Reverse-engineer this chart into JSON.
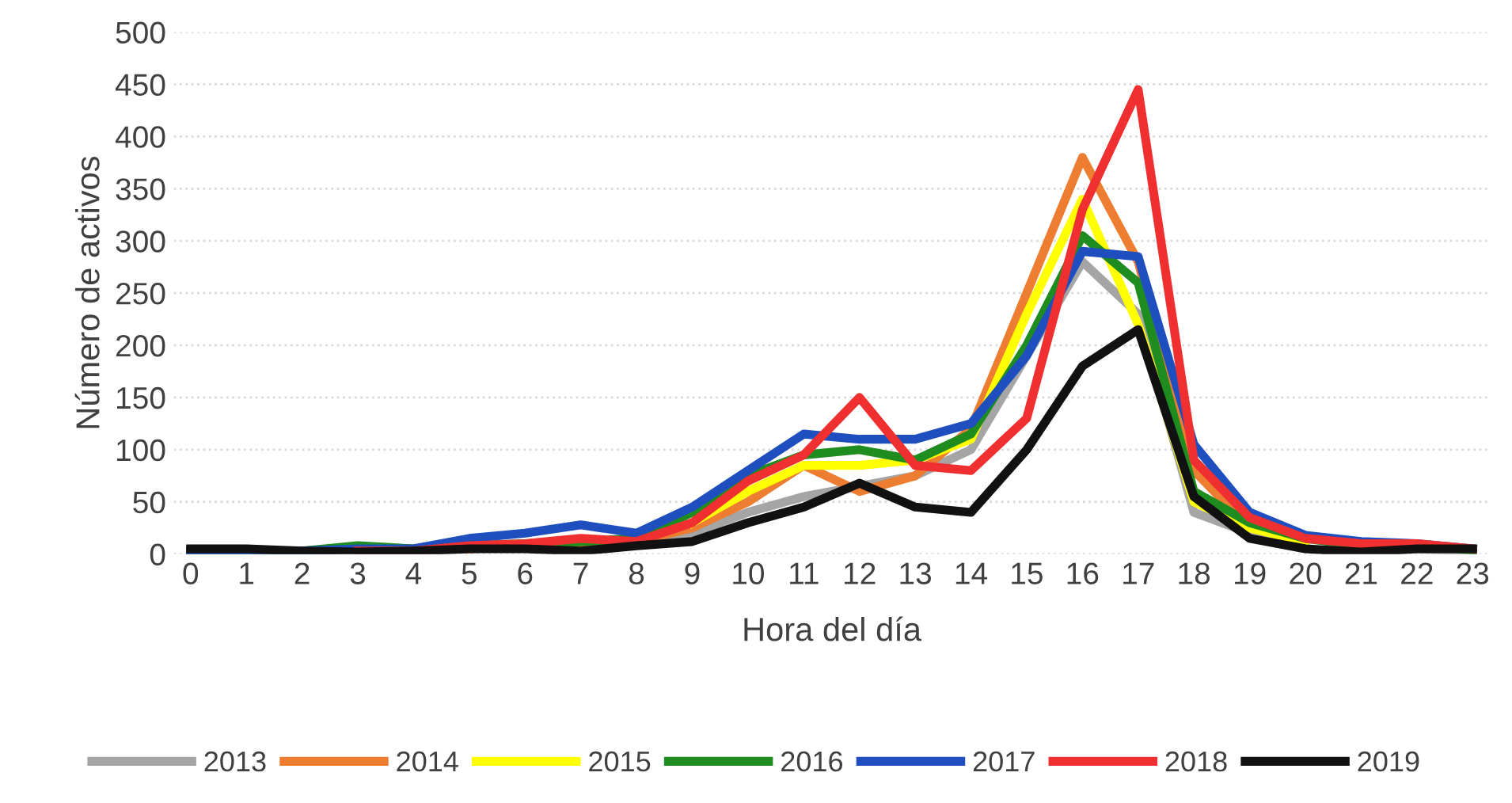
{
  "chart_data": {
    "type": "line",
    "xlabel": "Hora del día",
    "ylabel": "Número de activos",
    "categories": [
      "0",
      "1",
      "2",
      "3",
      "4",
      "5",
      "6",
      "7",
      "8",
      "9",
      "10",
      "11",
      "12",
      "13",
      "14",
      "15",
      "16",
      "17",
      "18",
      "19",
      "20",
      "21",
      "22",
      "23"
    ],
    "series": [
      {
        "name": "2013",
        "color": "#a5a5a5",
        "values": [
          2,
          2,
          2,
          3,
          3,
          5,
          8,
          8,
          10,
          20,
          40,
          55,
          65,
          75,
          100,
          190,
          280,
          230,
          40,
          20,
          10,
          null,
          5,
          3
        ]
      },
      {
        "name": "2014",
        "color": "#ed7d31",
        "values": [
          null,
          null,
          null,
          null,
          null,
          5,
          8,
          10,
          12,
          25,
          50,
          85,
          60,
          75,
          120,
          250,
          380,
          280,
          80,
          25,
          12,
          null,
          null,
          null
        ]
      },
      {
        "name": "2015",
        "color": "#ffff00",
        "values": [
          null,
          null,
          null,
          null,
          null,
          null,
          null,
          null,
          null,
          30,
          60,
          85,
          85,
          90,
          110,
          230,
          340,
          220,
          50,
          25,
          12,
          null,
          null,
          null
        ]
      },
      {
        "name": "2016",
        "color": "#1e8c1e",
        "values": [
          3,
          2,
          3,
          8,
          5,
          8,
          10,
          12,
          15,
          40,
          75,
          95,
          100,
          90,
          115,
          200,
          305,
          260,
          60,
          30,
          15,
          8,
          8,
          4
        ]
      },
      {
        "name": "2017",
        "color": "#1f4fbf",
        "values": [
          3,
          2,
          3,
          5,
          5,
          15,
          20,
          28,
          20,
          45,
          80,
          115,
          110,
          110,
          125,
          190,
          290,
          285,
          105,
          40,
          18,
          12,
          10,
          5
        ]
      },
      {
        "name": "2018",
        "color": "#f03030",
        "values": [
          null,
          null,
          null,
          3,
          3,
          8,
          10,
          15,
          12,
          30,
          70,
          95,
          150,
          85,
          80,
          130,
          330,
          445,
          90,
          35,
          15,
          10,
          10,
          5
        ]
      },
      {
        "name": "2019",
        "color": "#111111",
        "values": [
          5,
          5,
          3,
          2,
          3,
          5,
          5,
          3,
          8,
          12,
          30,
          45,
          68,
          45,
          40,
          100,
          180,
          215,
          55,
          15,
          5,
          2,
          5,
          5
        ]
      }
    ],
    "ylim": [
      0,
      500
    ],
    "yticks": [
      0,
      50,
      100,
      150,
      200,
      250,
      300,
      350,
      400,
      450,
      500
    ],
    "grid": "y",
    "legend": "bottom",
    "marker": "none",
    "line_style": "solid"
  }
}
